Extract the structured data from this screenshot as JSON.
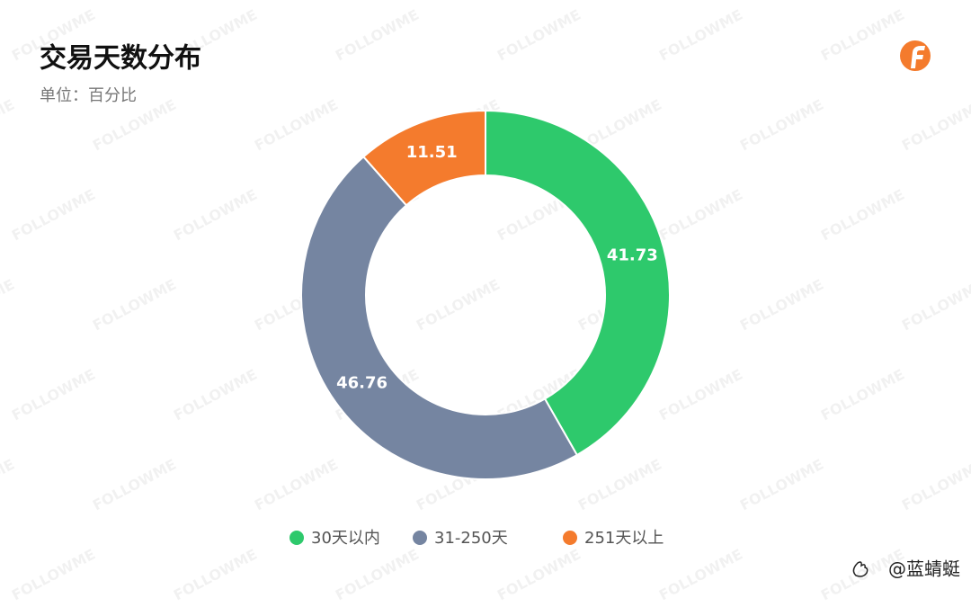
{
  "chart_data": {
    "type": "donut",
    "title": "交易天数分布",
    "subtitle": "单位：百分比",
    "categories": [
      "30天以内",
      "31-250天",
      "251天以上"
    ],
    "values": [
      41.73,
      46.76,
      11.51
    ],
    "colors": [
      "#2ec96c",
      "#7585a1",
      "#f47b2d"
    ]
  },
  "watermark": "FOLLOWME",
  "signature": "@蓝蜻蜓"
}
